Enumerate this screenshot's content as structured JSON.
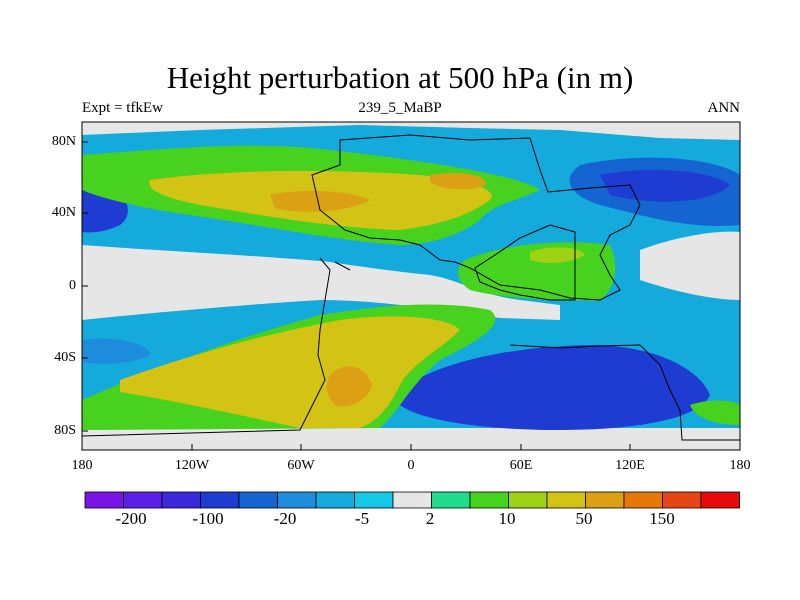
{
  "title": "Height perturbation at 500 hPa (in m)",
  "left_label": "Expt = tfkEw",
  "center_label": "239_5_MaBP",
  "right_label": "ANN",
  "map": {
    "projection": "cylindrical equidistant",
    "lon_range": [
      -180,
      180
    ],
    "lat_range": [
      -90,
      90
    ],
    "x_ticks": [
      "180",
      "120W",
      "60W",
      "0",
      "60E",
      "120E",
      "180"
    ],
    "y_ticks": [
      "80N",
      "40N",
      "0",
      "40S",
      "80S"
    ],
    "continent_outlines": true
  },
  "colorbar": {
    "colors": [
      "#7a14e6",
      "#5a1ee6",
      "#3c28dc",
      "#1e3cd2",
      "#1464d2",
      "#1e8cdc",
      "#14aadc",
      "#14c8e6",
      "#e6e6e6",
      "#1edc8c",
      "#46d21e",
      "#a0d214",
      "#d2c314",
      "#dca014",
      "#e6780a",
      "#e64614",
      "#e60a0a"
    ],
    "tick_labels": [
      "-200",
      "-100",
      "-20",
      "-5",
      "2",
      "10",
      "50",
      "150"
    ]
  }
}
